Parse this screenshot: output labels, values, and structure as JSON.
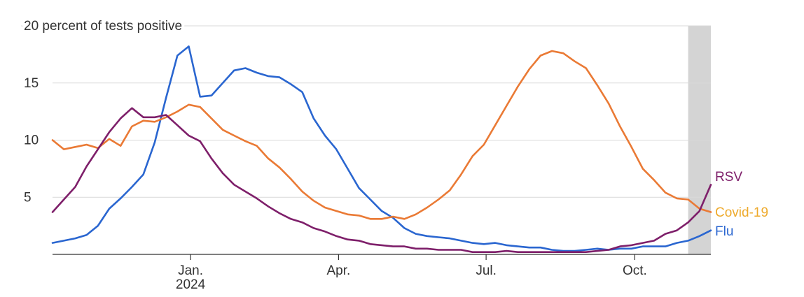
{
  "chart_data": {
    "type": "line",
    "x": [
      0,
      1,
      2,
      3,
      4,
      5,
      6,
      7,
      8,
      9,
      10,
      11,
      12,
      13,
      14,
      15,
      16,
      17,
      18,
      19,
      20,
      21,
      22,
      23,
      24,
      25,
      26,
      27,
      28,
      29,
      30,
      31,
      32,
      33,
      34,
      35,
      36,
      37,
      38,
      39,
      40,
      41,
      42,
      43,
      44,
      45,
      46,
      47,
      48,
      49,
      50,
      51,
      52,
      53,
      54,
      55,
      56,
      57,
      58
    ],
    "series": [
      {
        "name": "Flu",
        "color": "#2a66d0",
        "values": [
          1.0,
          1.2,
          1.4,
          1.7,
          2.5,
          4.0,
          4.9,
          5.9,
          7.0,
          9.8,
          13.7,
          17.4,
          18.2,
          13.8,
          13.9,
          15.0,
          16.1,
          16.3,
          15.9,
          15.6,
          15.5,
          14.9,
          14.2,
          11.9,
          10.4,
          9.2,
          7.5,
          5.8,
          4.8,
          3.8,
          3.2,
          2.3,
          1.8,
          1.6,
          1.5,
          1.4,
          1.2,
          1.0,
          0.9,
          1.0,
          0.8,
          0.7,
          0.6,
          0.6,
          0.4,
          0.3,
          0.3,
          0.4,
          0.5,
          0.4,
          0.5,
          0.5,
          0.7,
          0.7,
          0.7,
          1.0,
          1.2,
          1.6,
          2.1
        ]
      },
      {
        "name": "Covid-19",
        "color": "#ea7a35",
        "label_color": "#eeaa2c",
        "values": [
          10.0,
          9.2,
          9.4,
          9.6,
          9.3,
          10.1,
          9.5,
          11.2,
          11.7,
          11.6,
          12.0,
          12.5,
          13.1,
          12.9,
          11.9,
          10.9,
          10.4,
          9.9,
          9.5,
          8.4,
          7.6,
          6.6,
          5.5,
          4.7,
          4.1,
          3.8,
          3.5,
          3.4,
          3.1,
          3.1,
          3.3,
          3.1,
          3.5,
          4.1,
          4.8,
          5.6,
          7.0,
          8.6,
          9.6,
          11.3,
          13.0,
          14.7,
          16.2,
          17.4,
          17.8,
          17.6,
          16.9,
          16.3,
          14.8,
          13.2,
          11.2,
          9.4,
          7.5,
          6.5,
          5.4,
          4.9,
          4.8,
          4.0,
          3.7
        ]
      },
      {
        "name": "RSV",
        "color": "#7e1f6a",
        "values": [
          3.7,
          4.8,
          5.9,
          7.7,
          9.2,
          10.7,
          11.9,
          12.8,
          12.0,
          12.0,
          12.2,
          11.3,
          10.4,
          9.9,
          8.4,
          7.1,
          6.1,
          5.5,
          4.9,
          4.2,
          3.6,
          3.1,
          2.8,
          2.3,
          2.0,
          1.6,
          1.3,
          1.2,
          0.9,
          0.8,
          0.7,
          0.7,
          0.5,
          0.5,
          0.4,
          0.4,
          0.4,
          0.2,
          0.2,
          0.2,
          0.3,
          0.2,
          0.2,
          0.2,
          0.2,
          0.2,
          0.2,
          0.2,
          0.3,
          0.4,
          0.7,
          0.8,
          1.0,
          1.2,
          1.8,
          2.1,
          2.8,
          3.8,
          6.1
        ]
      }
    ],
    "xlim": [
      0,
      58
    ],
    "xticks": [
      {
        "value": 12.16,
        "label": "Jan.",
        "sublabel": "2024"
      },
      {
        "value": 25.2,
        "label": "Apr."
      },
      {
        "value": 38.2,
        "label": "Jul."
      },
      {
        "value": 51.3,
        "label": "Oct."
      }
    ],
    "ylim": [
      0,
      20
    ],
    "yticks": [
      5,
      10,
      15,
      {
        "value": 20,
        "label": "20 percent of tests positive"
      }
    ],
    "grid": true,
    "shaded": [
      56,
      58
    ],
    "shaded_color": "#d4d4d4"
  }
}
